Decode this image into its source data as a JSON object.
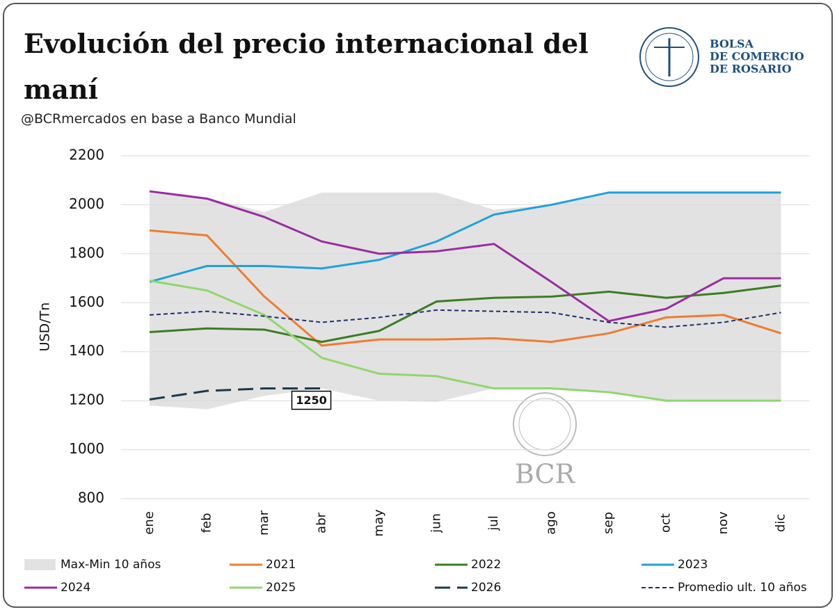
{
  "chart_data": {
    "type": "line",
    "title": "Evolución del precio internacional del maní",
    "subtitle": "@BCRmercados en base a Banco Mundial",
    "y_label": "USD/Tn",
    "logo_lines": [
      "BOLSA",
      "DE COMERCIO",
      "DE ROSARIO"
    ],
    "watermark": "BCR",
    "categories": [
      "ene",
      "feb",
      "mar",
      "abr",
      "may",
      "jun",
      "jul",
      "ago",
      "sep",
      "oct",
      "nov",
      "dic"
    ],
    "ylim": [
      800,
      2200
    ],
    "yticks": [
      800,
      1000,
      1200,
      1400,
      1600,
      1800,
      2000,
      2200
    ],
    "grid": true,
    "band": {
      "name": "Max-Min 10 años",
      "color": "#e2e2e2",
      "upper": [
        2055,
        2030,
        1970,
        2050,
        2050,
        2050,
        1980,
        2000,
        2050,
        2050,
        2050,
        2050
      ],
      "lower": [
        1180,
        1165,
        1220,
        1250,
        1200,
        1195,
        1250,
        1250,
        1240,
        1200,
        1200,
        1200
      ]
    },
    "series": [
      {
        "name": "2021",
        "color": "#ed7d31",
        "dash": "solid",
        "values": [
          1895,
          1875,
          1625,
          1425,
          1450,
          1450,
          1455,
          1440,
          1475,
          1540,
          1550,
          1475
        ]
      },
      {
        "name": "2022",
        "color": "#3a7d22",
        "dash": "solid",
        "values": [
          1480,
          1495,
          1490,
          1440,
          1485,
          1605,
          1620,
          1625,
          1645,
          1620,
          1640,
          1670
        ]
      },
      {
        "name": "2023",
        "color": "#1ea0dc",
        "dash": "solid",
        "values": [
          1685,
          1750,
          1750,
          1740,
          1775,
          1850,
          1960,
          2000,
          2050,
          2050,
          2050,
          2050
        ]
      },
      {
        "name": "2024",
        "color": "#9a2ca0",
        "dash": "solid",
        "values": [
          2055,
          2025,
          1950,
          1850,
          1800,
          1810,
          1840,
          1685,
          1525,
          1575,
          1700,
          1700
        ]
      },
      {
        "name": "2025",
        "color": "#8fd76b",
        "dash": "solid",
        "values": [
          1690,
          1650,
          1550,
          1375,
          1310,
          1300,
          1250,
          1250,
          1235,
          1200,
          1200,
          1200
        ]
      },
      {
        "name": "2026",
        "color": "#1b3a4b",
        "dash": "dashed",
        "values": [
          1205,
          1240,
          1250,
          1250,
          null,
          null,
          null,
          null,
          null,
          null,
          null,
          null
        ],
        "value_labels": [
          null,
          null,
          null,
          "1250",
          null,
          null,
          null,
          null,
          null,
          null,
          null,
          null
        ]
      },
      {
        "name": "Promedio ult. 10 años",
        "color": "#1f2d6b",
        "dash": "dotted",
        "values": [
          1550,
          1565,
          1545,
          1520,
          1540,
          1570,
          1565,
          1560,
          1520,
          1500,
          1520,
          1560
        ]
      }
    ]
  }
}
